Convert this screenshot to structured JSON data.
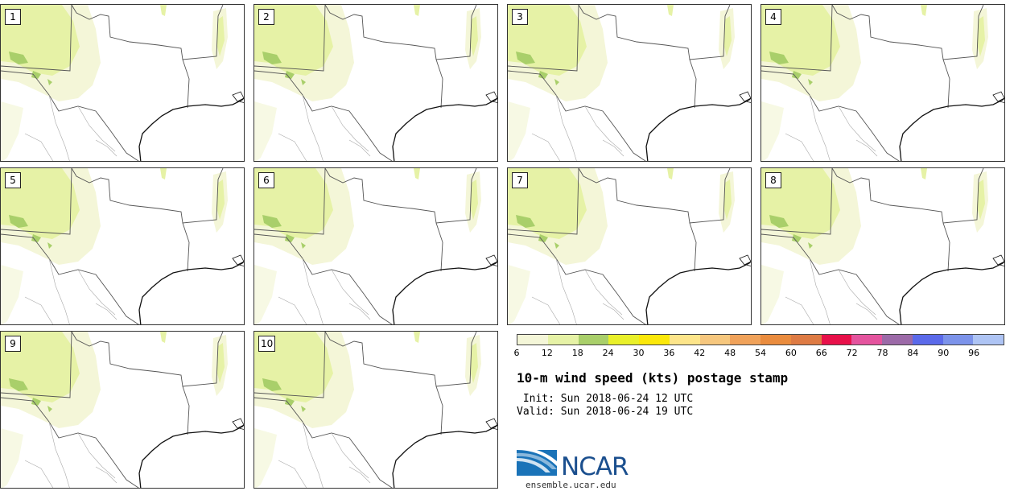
{
  "panels": [
    {
      "label": "1"
    },
    {
      "label": "2"
    },
    {
      "label": "3"
    },
    {
      "label": "4"
    },
    {
      "label": "5"
    },
    {
      "label": "6"
    },
    {
      "label": "7"
    },
    {
      "label": "8"
    },
    {
      "label": "9"
    },
    {
      "label": "10"
    }
  ],
  "colorbar": {
    "colors": [
      "#f4f6d8",
      "#e6f2a6",
      "#a9cf6a",
      "#e9f02a",
      "#fbe80a",
      "#fde58a",
      "#f6c77e",
      "#f0a25a",
      "#ea8c3e",
      "#de7b44",
      "#e8114a",
      "#e4549e",
      "#9c6aa8",
      "#5b6aea",
      "#7c93ea",
      "#aec4f4"
    ],
    "tick_labels": [
      "6",
      "12",
      "18",
      "24",
      "30",
      "36",
      "42",
      "48",
      "54",
      "60",
      "66",
      "72",
      "78",
      "84",
      "90",
      "96"
    ]
  },
  "title": "10-m wind speed (kts) postage stamp",
  "init_text": " Init: Sun 2018-06-24 12 UTC",
  "valid_text": "Valid: Sun 2018-06-24 19 UTC",
  "logo": {
    "name": "NCAR",
    "url": "ensemble.ucar.edu"
  }
}
